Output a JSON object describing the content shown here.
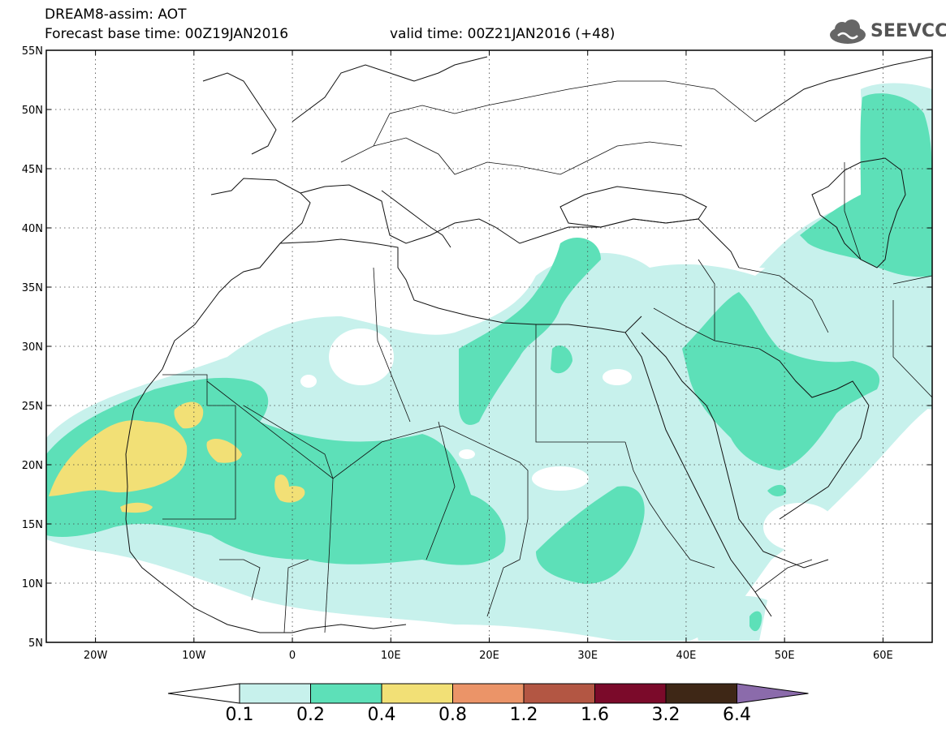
{
  "header": {
    "title": "DREAM8-assim: AOT",
    "base_time": "Forecast base time: 00Z19JAN2016",
    "valid_time": "valid time: 00Z21JAN2016 (+48)"
  },
  "logo": {
    "text": "SEEVCCC",
    "icon": "cloud-icon"
  },
  "map": {
    "variable": "AOT",
    "projection": "lat-lon",
    "lon_range": [
      -25,
      65
    ],
    "lat_range": [
      5,
      55
    ],
    "lat_labels": [
      "55N",
      "50N",
      "45N",
      "40N",
      "35N",
      "30N",
      "25N",
      "20N",
      "15N",
      "10N",
      "5N"
    ],
    "lon_labels": [
      "20W",
      "10W",
      "0",
      "10E",
      "20E",
      "30E",
      "40E",
      "50E",
      "60E"
    ]
  },
  "legend": {
    "thresholds": [
      "0.1",
      "0.2",
      "0.4",
      "0.8",
      "1.2",
      "1.6",
      "3.2",
      "6.4"
    ],
    "colors": [
      "#c7f1ec",
      "#5de0b8",
      "#f2e076",
      "#eb9468",
      "#b35643",
      "#7b0a2a",
      "#3e2716",
      "#8b6bab"
    ]
  }
}
